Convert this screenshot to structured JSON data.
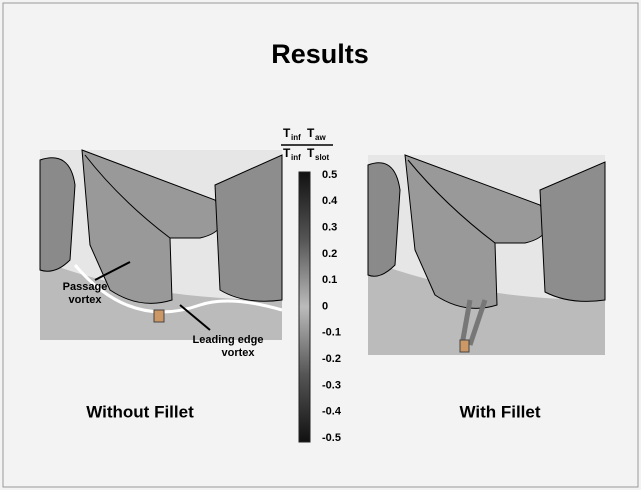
{
  "title": "Results",
  "formula": {
    "num_a": "T",
    "num_a_sub": "inf",
    "num_b": "T",
    "num_b_sub": "aw",
    "den_a": "T",
    "den_a_sub": "inf",
    "den_b": "T",
    "den_b_sub": "slot"
  },
  "colorbar": {
    "ticks": [
      "0.5",
      "0.4",
      "0.3",
      "0.2",
      "0.1",
      "0",
      "-0.1",
      "-0.2",
      "-0.3",
      "-0.4",
      "-0.5"
    ]
  },
  "left_panel": {
    "caption": "Without Fillet",
    "annotations": [
      [
        "Passage",
        "vortex"
      ],
      [
        "Leading edge",
        "vortex"
      ]
    ]
  },
  "right_panel": {
    "caption": "With Fillet"
  }
}
